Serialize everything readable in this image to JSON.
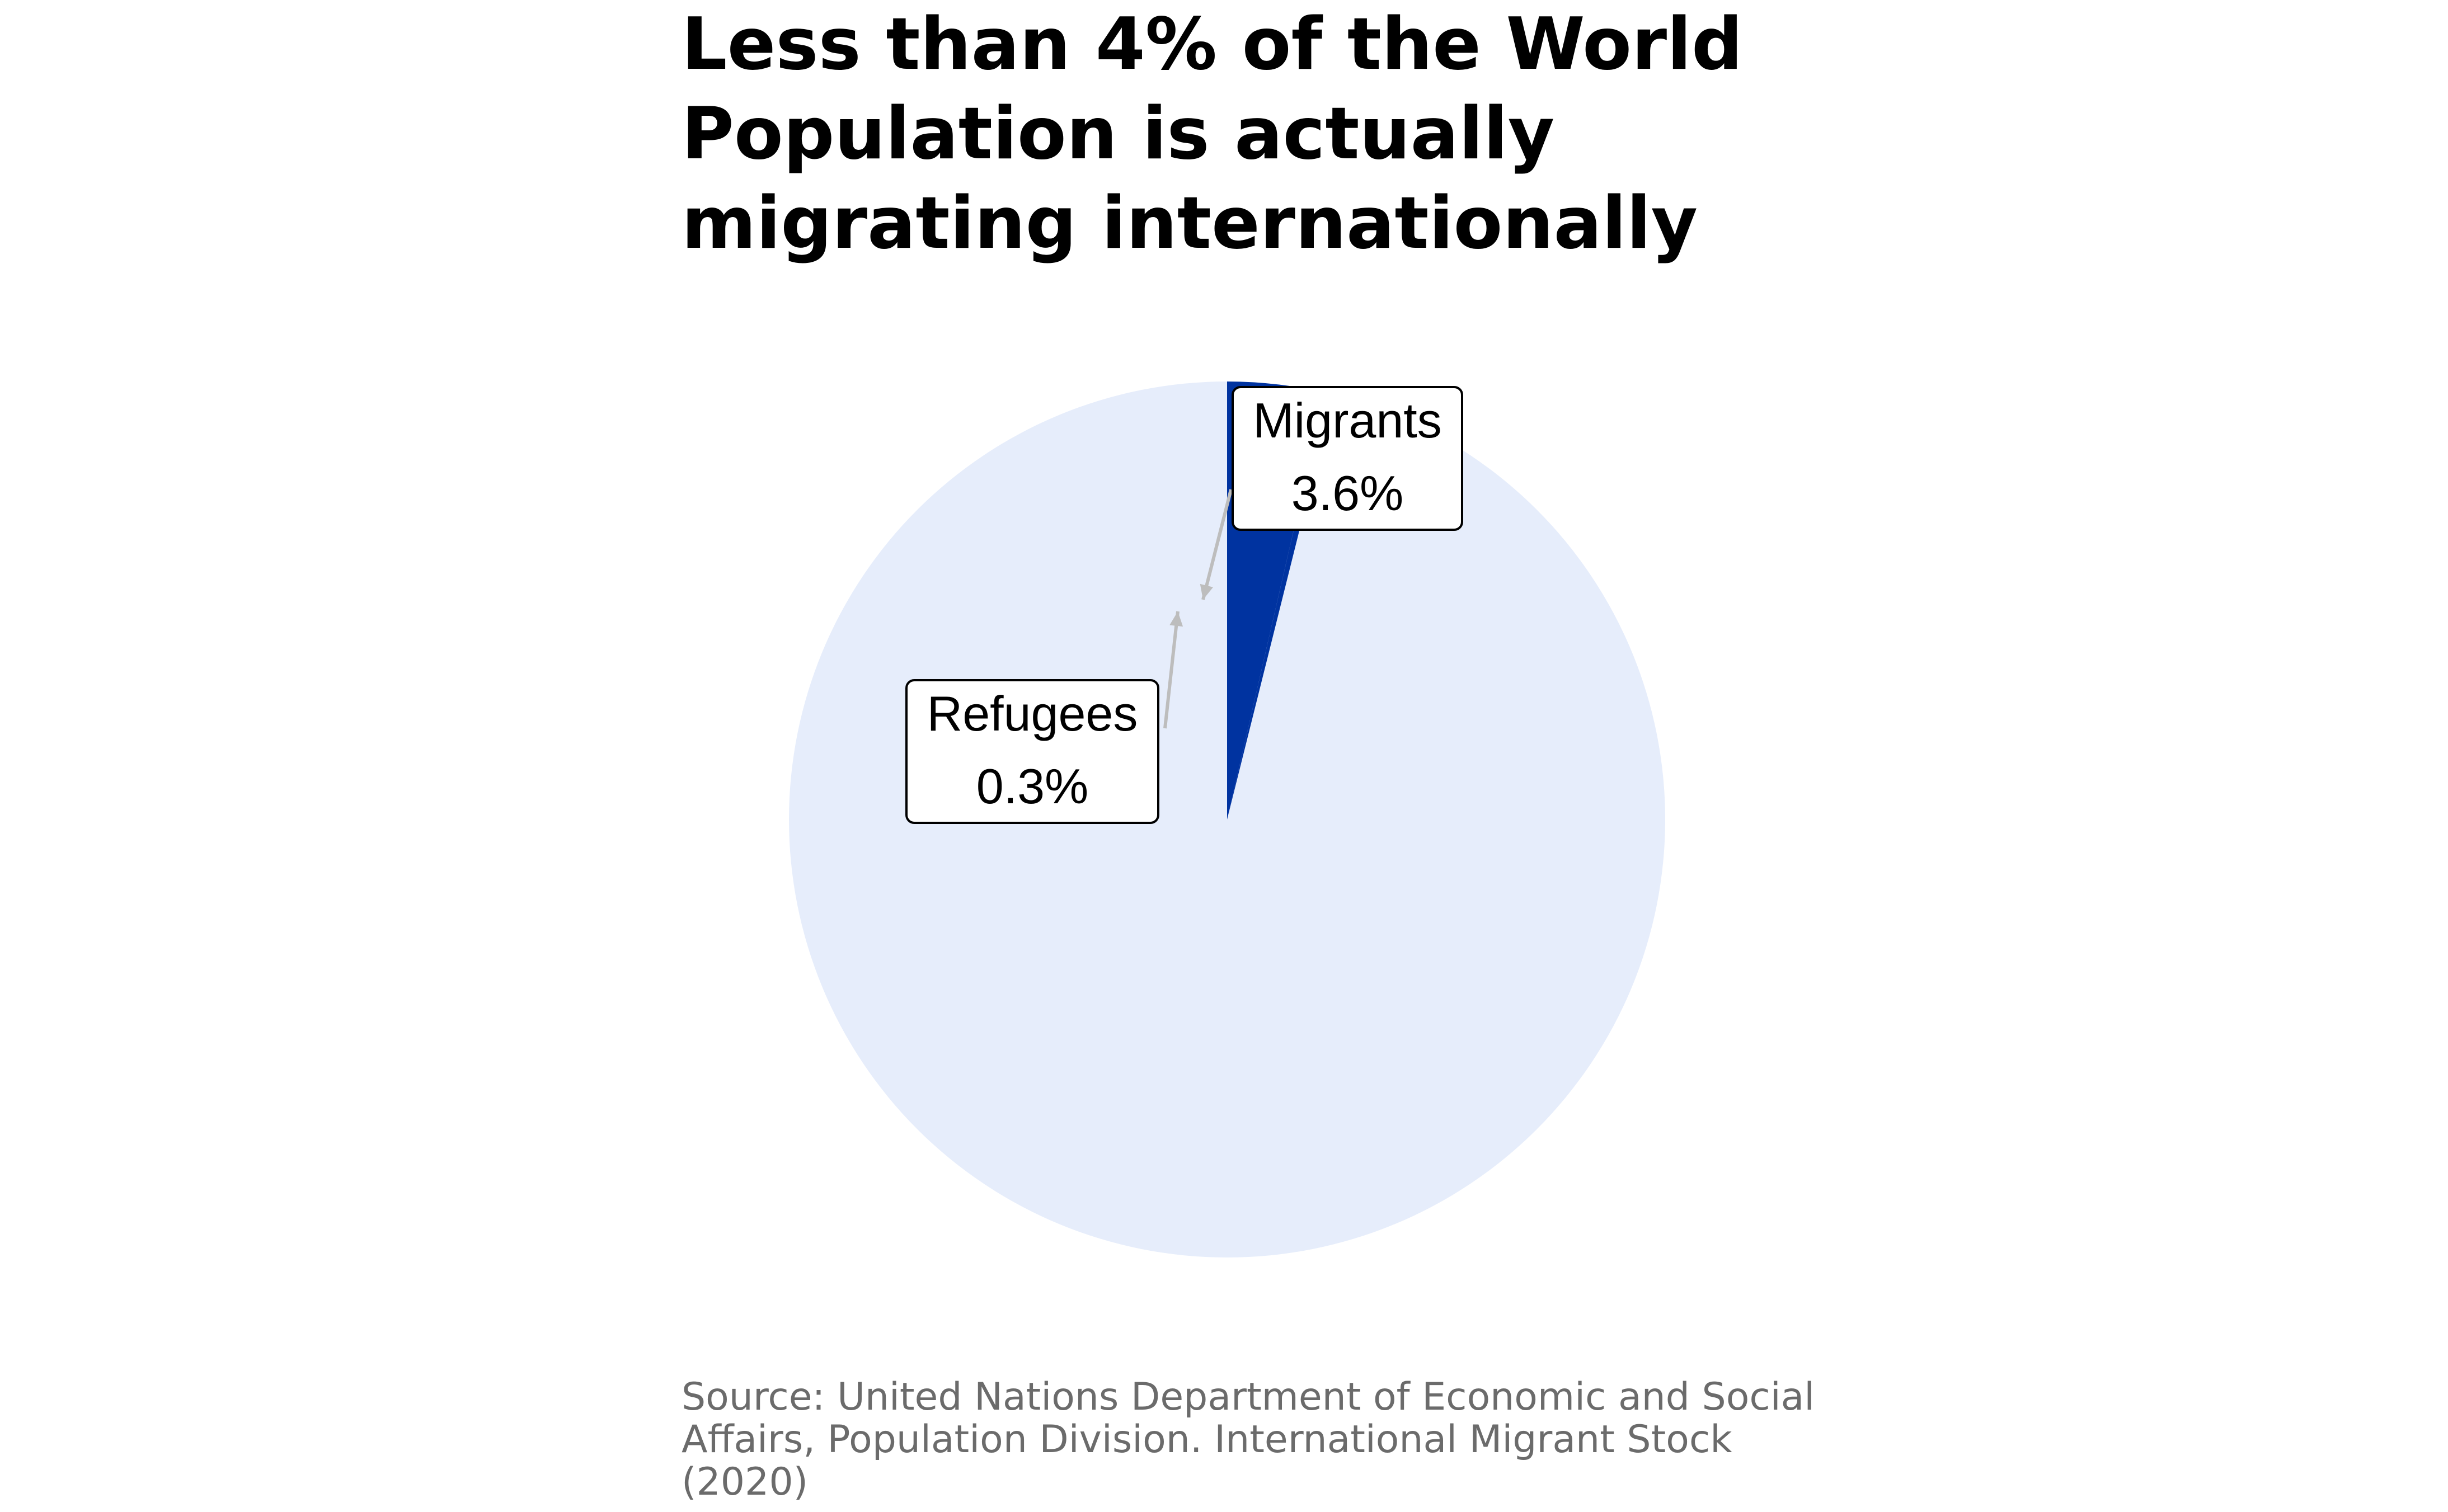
{
  "chart_data": {
    "type": "pie",
    "title_lines": [
      "Less than 4% of the World",
      "Population is actually",
      "migrating internationally"
    ],
    "slices": [
      {
        "label": "Migrants",
        "value": 3.6,
        "value_label": "3.6%",
        "color": "#0033a0"
      },
      {
        "label": "Refugees",
        "value": 0.3,
        "value_label": "0.3%",
        "color": "#0033a0"
      }
    ],
    "remainder": {
      "value": 96.1,
      "color": "#e6edfb"
    },
    "source_lines": [
      "Source: United Nations Department of Economic and Social",
      "Affairs, Population Division. International Migrant Stock",
      "(2020)"
    ]
  }
}
